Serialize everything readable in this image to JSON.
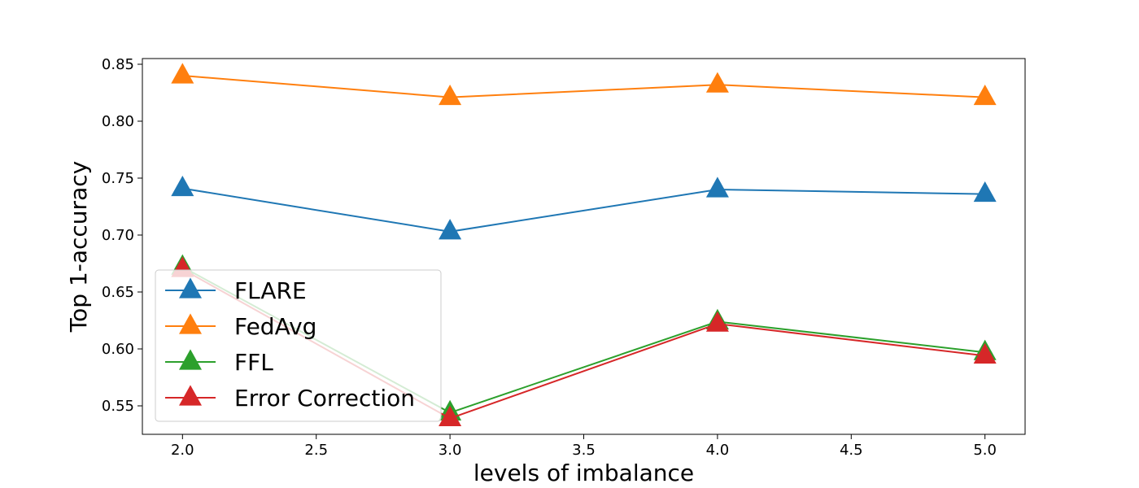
{
  "chart_data": {
    "type": "line",
    "title": "",
    "xlabel": "levels of imbalance",
    "ylabel": "Top 1-accuracy",
    "x": [
      2.0,
      3.0,
      4.0,
      5.0
    ],
    "xlim": [
      1.85,
      5.15
    ],
    "ylim": [
      0.525,
      0.855
    ],
    "xticks": [
      2.0,
      2.5,
      3.0,
      3.5,
      4.0,
      4.5,
      5.0
    ],
    "xtick_labels": [
      "2.0",
      "2.5",
      "3.0",
      "3.5",
      "4.0",
      "4.5",
      "5.0"
    ],
    "yticks": [
      0.55,
      0.6,
      0.65,
      0.7,
      0.75,
      0.8,
      0.85
    ],
    "ytick_labels": [
      "0.55",
      "0.60",
      "0.65",
      "0.70",
      "0.75",
      "0.80",
      "0.85"
    ],
    "grid": false,
    "legend_position": "lower-left",
    "series": [
      {
        "name": "FLARE",
        "color": "#1f77b4",
        "values": [
          0.741,
          0.703,
          0.74,
          0.736
        ]
      },
      {
        "name": "FedAvg",
        "color": "#ff7f0e",
        "values": [
          0.84,
          0.821,
          0.832,
          0.821
        ]
      },
      {
        "name": "FFL",
        "color": "#2ca02c",
        "values": [
          0.672,
          0.544,
          0.624,
          0.597
        ]
      },
      {
        "name": "Error Correction",
        "color": "#d62728",
        "values": [
          0.67,
          0.539,
          0.622,
          0.594
        ]
      }
    ]
  }
}
